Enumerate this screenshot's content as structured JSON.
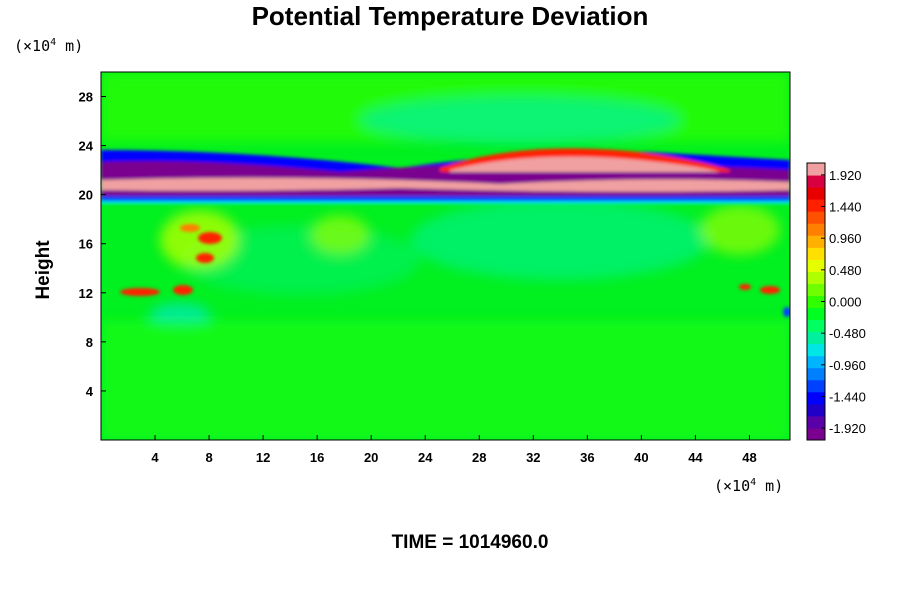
{
  "chart_data": {
    "type": "heatmap",
    "title": "Potential Temperature Deviation",
    "ylabel": "Height",
    "x_unit_text": "(×10",
    "y_unit_text": "(×10",
    "unit_exponent": "4",
    "unit_suffix": " m)",
    "x_ticks": [
      4,
      8,
      12,
      16,
      20,
      24,
      28,
      32,
      36,
      40,
      44,
      48
    ],
    "y_ticks": [
      4,
      8,
      12,
      16,
      20,
      24,
      28
    ],
    "xlim": [
      0,
      51
    ],
    "ylim": [
      0,
      30
    ],
    "colorbar_labels": [
      "1.920",
      "1.440",
      "0.960",
      "0.480",
      "0.000",
      "-0.480",
      "-0.960",
      "-1.440",
      "-1.920"
    ],
    "colorbar_range": [
      -2.1,
      2.1
    ],
    "colorbar_colors": [
      "#7a0090",
      "#5a00a8",
      "#2000c8",
      "#0000ff",
      "#0040ff",
      "#0080ff",
      "#00b4ff",
      "#00e6e6",
      "#00f0a0",
      "#00ff60",
      "#00ff20",
      "#30ff00",
      "#70ff00",
      "#b0ff00",
      "#e6ff00",
      "#ffe000",
      "#ffb000",
      "#ff8000",
      "#ff5000",
      "#ff2000",
      "#e80000",
      "#d80040",
      "#f0a0a0"
    ],
    "time_label": "TIME = 1014960.0"
  }
}
